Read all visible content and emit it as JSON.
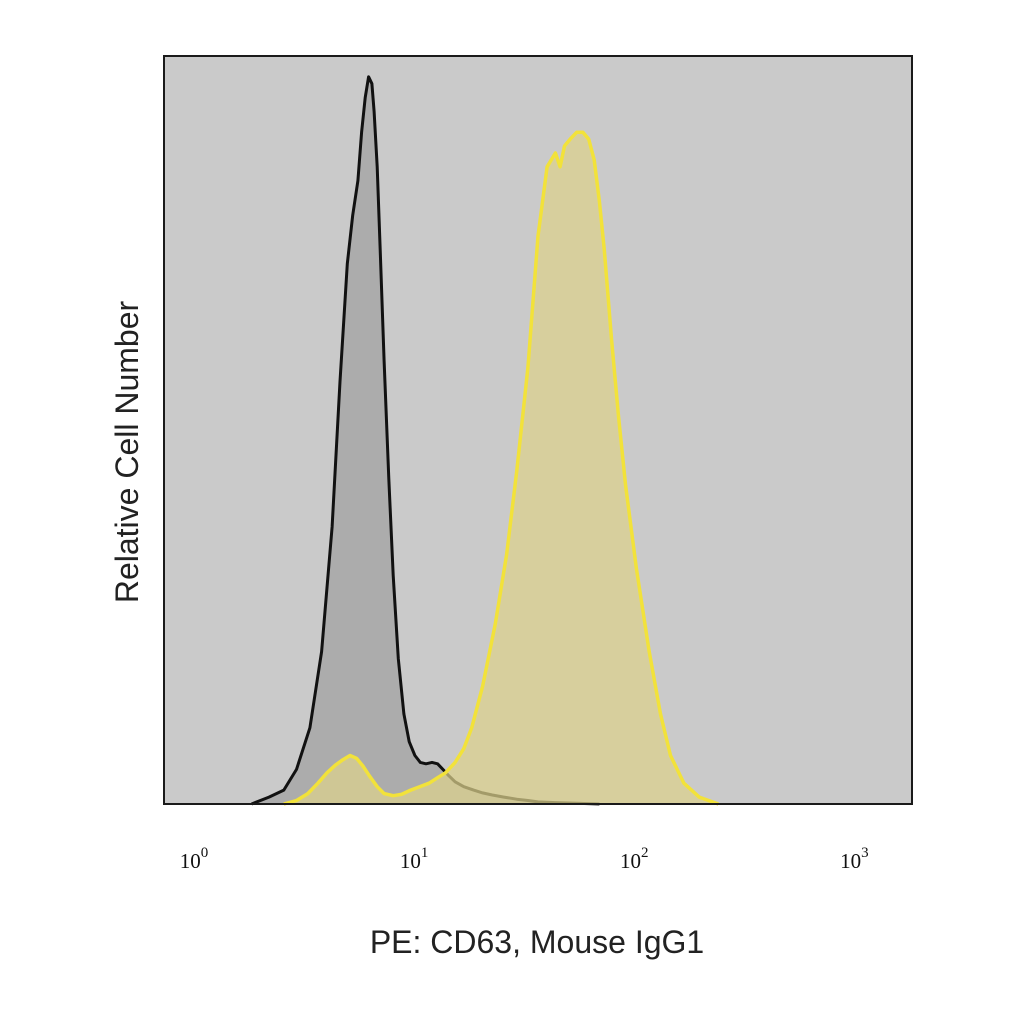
{
  "chart_data": {
    "type": "area",
    "xlabel": "PE: CD63, Mouse IgG1",
    "ylabel": "Relative Cell Number",
    "xscale": "log",
    "xlim": [
      1,
      2500
    ],
    "ylim": [
      0,
      1.08
    ],
    "x_ticks": [
      {
        "value": 1,
        "base": "10",
        "exp": "0"
      },
      {
        "value": 10,
        "base": "10",
        "exp": "1"
      },
      {
        "value": 100,
        "base": "10",
        "exp": "2"
      },
      {
        "value": 1000,
        "base": "10",
        "exp": "3"
      }
    ],
    "grid": false,
    "legend": "none",
    "colors": {
      "plot_background": "#cacaca",
      "series_0_line": "#111111",
      "series_0_fill": "#a9a9a9",
      "series_1_line": "#f2e23a",
      "series_1_fill": "#ddd18c"
    },
    "series": [
      {
        "x": [
          2.5,
          3.0,
          3.5,
          4.0,
          4.6,
          5.2,
          5.8,
          6.3,
          6.8,
          7.2,
          7.6,
          7.9,
          8.2,
          8.5,
          8.8,
          9.0,
          9.3,
          9.6,
          10.0,
          10.5,
          11.0,
          11.6,
          12.3,
          13.0,
          13.8,
          14.6,
          15.5,
          16.5,
          17.5,
          18.5,
          19.5,
          21.0,
          23.0,
          25.5,
          28.0,
          31.0,
          35.0,
          40.0,
          45.0,
          50.0,
          60.0,
          75.0,
          95.0
        ],
        "y": [
          0.0,
          0.01,
          0.02,
          0.05,
          0.11,
          0.22,
          0.4,
          0.61,
          0.78,
          0.85,
          0.9,
          0.97,
          1.02,
          1.05,
          1.04,
          1.0,
          0.92,
          0.8,
          0.64,
          0.47,
          0.33,
          0.21,
          0.13,
          0.09,
          0.07,
          0.06,
          0.058,
          0.06,
          0.058,
          0.05,
          0.042,
          0.032,
          0.025,
          0.02,
          0.016,
          0.013,
          0.01,
          0.007,
          0.005,
          0.003,
          0.002,
          0.001,
          0.0
        ]
      },
      {
        "x": [
          3.5,
          4.0,
          4.5,
          5.0,
          5.5,
          6.0,
          6.5,
          7.0,
          7.5,
          8.0,
          8.6,
          9.3,
          10.0,
          11.0,
          12.0,
          13.2,
          14.5,
          16.0,
          17.5,
          19.0,
          21.0,
          23.0,
          25.0,
          28.0,
          32.0,
          36.0,
          40.0,
          45.0,
          50.0,
          55.0,
          60.0,
          63.0,
          66.0,
          70.0,
          75.0,
          80.0,
          85.0,
          90.0,
          95.0,
          100.0,
          108.0,
          116.0,
          125.0,
          140.0,
          160.0,
          180.0,
          200.0,
          230.0,
          270.0,
          330.0
        ],
        "y": [
          0.0,
          0.005,
          0.015,
          0.03,
          0.045,
          0.056,
          0.064,
          0.07,
          0.066,
          0.055,
          0.04,
          0.025,
          0.015,
          0.012,
          0.014,
          0.02,
          0.025,
          0.03,
          0.038,
          0.045,
          0.06,
          0.08,
          0.11,
          0.17,
          0.26,
          0.36,
          0.48,
          0.63,
          0.82,
          0.92,
          0.94,
          0.92,
          0.95,
          0.96,
          0.97,
          0.97,
          0.96,
          0.93,
          0.87,
          0.8,
          0.67,
          0.56,
          0.46,
          0.34,
          0.22,
          0.13,
          0.07,
          0.03,
          0.01,
          0.0
        ]
      }
    ]
  }
}
